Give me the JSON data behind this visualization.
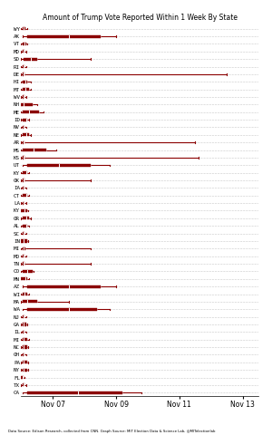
{
  "title": "Amount of Trump Vote Reported Within 1 Week By State",
  "footnote": "Data Source: Edison Research, collected from CNN. Graph Source: MIT Election Data & Science Lab, @MITelectionlab",
  "state_labels": [
    "WY",
    "AK",
    "VT",
    "MD",
    "SD",
    "RI",
    "DE",
    "HI",
    "MT",
    "WV",
    "NH",
    "ME",
    "ID",
    "NV",
    "NE",
    "AR",
    "MS",
    "KS",
    "UT",
    "KY",
    "OK",
    "IA",
    "CT",
    "LA",
    "KY",
    "OR",
    "AL",
    "SC",
    "IN",
    "MI",
    "MO",
    "TN",
    "CO",
    "MN",
    "AZ",
    "WI",
    "MA",
    "WA",
    "NJ",
    "GA",
    "IL",
    "MI",
    "NC",
    "OH",
    "PA",
    "NY",
    "FL",
    "TX",
    "CA"
  ],
  "xticks_pos": [
    1,
    3,
    5,
    7
  ],
  "xtick_labels": [
    "Nov 07",
    "Nov 09",
    "Nov 11",
    "Nov 13"
  ],
  "xlim": [
    0,
    7.5
  ],
  "box_color": "#8B0000",
  "bg_color": "#ffffff",
  "box_rows": [
    [
      0.0,
      0.05,
      0.08,
      0.12,
      0.18
    ],
    [
      0.05,
      0.2,
      1.5,
      2.5,
      3.0
    ],
    [
      0.0,
      0.05,
      0.1,
      0.15,
      0.2
    ],
    [
      0.0,
      0.05,
      0.08,
      0.1,
      0.15
    ],
    [
      0.0,
      0.08,
      0.3,
      0.5,
      2.2
    ],
    [
      0.0,
      0.05,
      0.08,
      0.1,
      0.15
    ],
    [
      0.0,
      0.05,
      0.08,
      0.1,
      6.5
    ],
    [
      0.0,
      0.05,
      0.12,
      0.18,
      0.3
    ],
    [
      0.0,
      0.05,
      0.12,
      0.25,
      0.3
    ],
    [
      0.0,
      0.05,
      0.08,
      0.1,
      0.15
    ],
    [
      0.0,
      0.0,
      0.08,
      0.35,
      0.5
    ],
    [
      0.0,
      0.05,
      0.25,
      0.55,
      0.7
    ],
    [
      0.0,
      0.05,
      0.15,
      0.2,
      0.25
    ],
    [
      0.0,
      0.05,
      0.08,
      0.1,
      0.15
    ],
    [
      0.0,
      0.05,
      0.15,
      0.25,
      0.3
    ],
    [
      0.0,
      0.05,
      0.08,
      0.1,
      5.5
    ],
    [
      0.0,
      0.05,
      0.4,
      0.8,
      1.1
    ],
    [
      0.0,
      0.05,
      0.08,
      0.1,
      5.6
    ],
    [
      0.05,
      0.2,
      1.2,
      2.2,
      2.8
    ],
    [
      0.0,
      0.05,
      0.15,
      0.2,
      0.25
    ],
    [
      0.0,
      0.05,
      0.08,
      0.1,
      2.2
    ],
    [
      0.0,
      0.05,
      0.08,
      0.1,
      0.15
    ],
    [
      0.0,
      0.05,
      0.15,
      0.2,
      0.25
    ],
    [
      0.0,
      0.05,
      0.08,
      0.1,
      0.15
    ],
    [
      0.0,
      0.0,
      0.1,
      0.18,
      0.22
    ],
    [
      0.0,
      0.05,
      0.15,
      0.25,
      0.3
    ],
    [
      0.0,
      0.05,
      0.15,
      0.2,
      0.25
    ],
    [
      0.0,
      0.05,
      0.08,
      0.1,
      0.15
    ],
    [
      0.0,
      0.0,
      0.08,
      0.18,
      0.22
    ],
    [
      0.0,
      0.05,
      0.08,
      0.12,
      2.2
    ],
    [
      0.0,
      0.05,
      0.08,
      0.1,
      0.15
    ],
    [
      0.0,
      0.05,
      0.08,
      0.1,
      2.2
    ],
    [
      0.0,
      0.05,
      0.2,
      0.35,
      0.4
    ],
    [
      0.0,
      0.0,
      0.12,
      0.2,
      0.25
    ],
    [
      0.05,
      0.2,
      1.5,
      2.5,
      3.0
    ],
    [
      0.0,
      0.05,
      0.1,
      0.2,
      0.25
    ],
    [
      0.0,
      0.05,
      0.2,
      0.5,
      1.5
    ],
    [
      0.05,
      0.2,
      1.5,
      2.4,
      2.8
    ],
    [
      0.0,
      0.05,
      0.08,
      0.1,
      0.15
    ],
    [
      0.0,
      0.05,
      0.08,
      0.15,
      0.2
    ],
    [
      0.0,
      0.05,
      0.08,
      0.1,
      0.15
    ],
    [
      0.0,
      0.05,
      0.08,
      0.2,
      0.25
    ],
    [
      0.0,
      0.05,
      0.08,
      0.18,
      0.22
    ],
    [
      0.0,
      0.05,
      0.08,
      0.1,
      0.15
    ],
    [
      0.0,
      0.05,
      0.08,
      0.18,
      0.22
    ],
    [
      0.0,
      0.05,
      0.08,
      0.18,
      0.22
    ],
    [
      0.0,
      0.0,
      0.05,
      0.08,
      0.1
    ],
    [
      0.0,
      0.05,
      0.08,
      0.1,
      0.15
    ],
    [
      0.05,
      0.2,
      1.8,
      3.2,
      3.8
    ]
  ]
}
